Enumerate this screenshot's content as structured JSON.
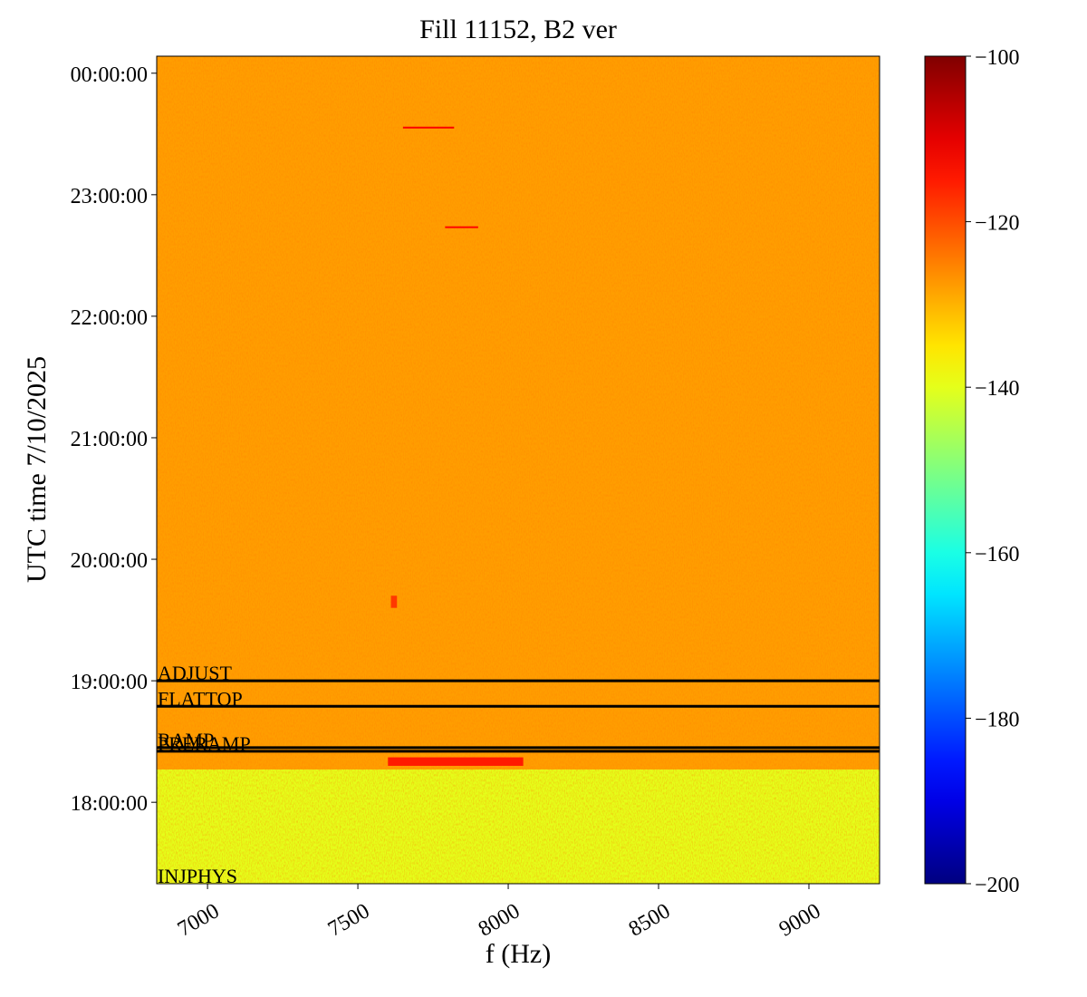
{
  "chart_data": {
    "type": "spectrogram",
    "title": "Fill 11152, B2 ver",
    "xlabel": "f (Hz)",
    "ylabel": "UTC time 7/10/2025",
    "colormap": "jet",
    "xlim": [
      6831,
      9235
    ],
    "xticks": [
      7000,
      7500,
      8000,
      8500,
      9000
    ],
    "ylim": [
      17.33,
      24.14
    ],
    "yticks": [
      {
        "value": 18,
        "label": "18:00:00"
      },
      {
        "value": 19,
        "label": "19:00:00"
      },
      {
        "value": 20,
        "label": "20:00:00"
      },
      {
        "value": 21,
        "label": "21:00:00"
      },
      {
        "value": 22,
        "label": "22:00:00"
      },
      {
        "value": 23,
        "label": "23:00:00"
      },
      {
        "value": 24,
        "label": "00:00:00"
      }
    ],
    "clim": [
      -200,
      -100
    ],
    "cticks": [
      {
        "value": -200,
        "label": "−200"
      },
      {
        "value": -180,
        "label": "−180"
      },
      {
        "value": -160,
        "label": "−160"
      },
      {
        "value": -140,
        "label": "−140"
      },
      {
        "value": -120,
        "label": "−120"
      },
      {
        "value": -100,
        "label": "−100"
      }
    ],
    "cells": [
      {
        "f": [
          6831,
          9235
        ],
        "t": [
          17.33,
          18.27
        ],
        "value": -140
      },
      {
        "f": [
          6831,
          9235
        ],
        "t": [
          18.27,
          24.14
        ],
        "value": -128
      },
      {
        "f": [
          7650,
          7820
        ],
        "t": [
          23.545,
          23.56
        ],
        "value": -112
      },
      {
        "f": [
          7790,
          7900
        ],
        "t": [
          22.725,
          22.74
        ],
        "value": -113
      },
      {
        "f": [
          7600,
          8050
        ],
        "t": [
          18.3,
          18.37
        ],
        "value": -115
      },
      {
        "f": [
          7610,
          7630
        ],
        "t": [
          19.6,
          19.7
        ],
        "value": -118
      }
    ],
    "events": [
      {
        "label": "ADJUST",
        "t": 19.0,
        "line": true
      },
      {
        "label": "FLATTOP",
        "t": 18.79,
        "line": true
      },
      {
        "label": "RAMP",
        "t": 18.45,
        "line": true
      },
      {
        "label": "PRERAMP",
        "t": 18.42,
        "line": true
      },
      {
        "label": "INJPHYS",
        "t": 17.33,
        "line": false
      }
    ],
    "event_color": "#000000"
  }
}
